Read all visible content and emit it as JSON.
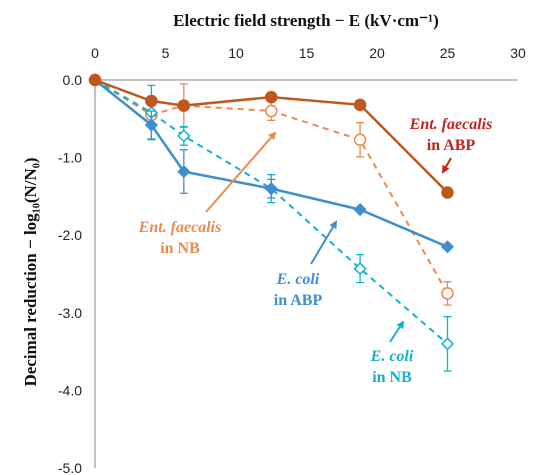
{
  "chart_data": {
    "type": "line",
    "xlabel": "Electric field strength − E (kV·cm⁻¹)",
    "ylabel": "Decimal reduction − log₁₀(N/N₀)",
    "xlim": [
      0,
      30
    ],
    "ylim": [
      -5.0,
      0.0
    ],
    "x_ticks": [
      "0",
      "5",
      "10",
      "15",
      "20",
      "25",
      "30"
    ],
    "y_ticks": [
      "0.0",
      "-1.0",
      "-2.0",
      "-3.0",
      "-4.0",
      "-5.0"
    ],
    "x_axis_position": "top",
    "grid": false,
    "legend": "none (in-plot annotations)",
    "series": [
      {
        "id": "ef_abp",
        "color": "#c0571e",
        "marker": "circle-filled",
        "line": "solid",
        "x": [
          0,
          4,
          6.3,
          12.5,
          18.8,
          25
        ],
        "y": [
          0.0,
          -0.27,
          -0.33,
          -0.22,
          -0.32,
          -1.45
        ],
        "err": [
          0,
          0,
          0,
          0,
          0,
          0
        ]
      },
      {
        "id": "ef_nb",
        "color": "#ed8a4b",
        "marker": "circle-open",
        "line": "dashed",
        "x": [
          0,
          4,
          6.3,
          12.5,
          18.8,
          25
        ],
        "y": [
          0.0,
          -0.45,
          -0.33,
          -0.4,
          -0.77,
          -2.75
        ],
        "err": [
          0,
          0.12,
          0.28,
          0.12,
          0.22,
          0.15
        ]
      },
      {
        "id": "ec_abp",
        "color": "#3d8fd0",
        "marker": "diamond-filled",
        "line": "solid",
        "x": [
          0,
          4,
          6.3,
          12.5,
          18.8,
          25
        ],
        "y": [
          0.0,
          -0.58,
          -1.18,
          -1.4,
          -1.67,
          -2.15
        ],
        "err": [
          0,
          0.18,
          0.28,
          0.12,
          0,
          0
        ]
      },
      {
        "id": "ec_nb",
        "color": "#11b2cc",
        "marker": "diamond-open",
        "line": "dashed",
        "x": [
          0,
          4,
          6.3,
          12.5,
          18.8,
          25
        ],
        "y": [
          0.0,
          -0.42,
          -0.72,
          -1.4,
          -2.43,
          -3.4
        ],
        "err": [
          0,
          0.35,
          0.12,
          0.18,
          0.18,
          0.35
        ]
      }
    ],
    "annotations": [
      {
        "line1": "Ent. faecalis",
        "line2": "in ABP",
        "color": "#c0241e"
      },
      {
        "line1": "Ent. faecalis",
        "line2": "in NB",
        "color": "#ed8a4b"
      },
      {
        "line1": "E. coli",
        "line2": "in ABP",
        "color": "#3d8fd0"
      },
      {
        "line1": "E. coli",
        "line2": "in NB",
        "color": "#11b2cc"
      }
    ]
  }
}
